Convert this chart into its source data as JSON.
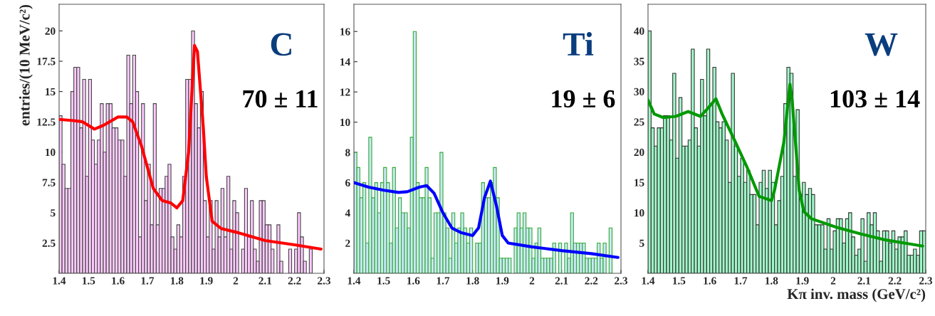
{
  "chart_data": [
    {
      "type": "histogram",
      "ylabel": "entries/(10 MeV/c²)",
      "annotations": [
        "C",
        "70 ± 11"
      ],
      "xlim": [
        1.4,
        2.3
      ],
      "xticks": [
        1.4,
        1.5,
        1.6,
        1.7,
        1.8,
        1.9,
        2,
        2.1,
        2.2,
        2.3
      ],
      "ylim": [
        0,
        22.2
      ],
      "yticks": [
        2.5,
        5,
        7.5,
        10,
        12.5,
        15,
        17.5,
        20
      ],
      "bins": [
        1.4,
        1.41,
        1.42,
        1.43,
        1.44,
        1.45,
        1.46,
        1.47,
        1.48,
        1.49,
        1.5,
        1.51,
        1.52,
        1.53,
        1.54,
        1.55,
        1.56,
        1.57,
        1.58,
        1.59,
        1.6,
        1.61,
        1.62,
        1.63,
        1.64,
        1.65,
        1.66,
        1.67,
        1.68,
        1.69,
        1.7,
        1.71,
        1.72,
        1.73,
        1.74,
        1.75,
        1.76,
        1.77,
        1.78,
        1.79,
        1.8,
        1.81,
        1.82,
        1.83,
        1.84,
        1.85,
        1.86,
        1.87,
        1.88,
        1.89,
        1.9,
        1.91,
        1.92,
        1.93,
        1.94,
        1.95,
        1.96,
        1.97,
        1.98,
        1.99,
        2.0,
        2.01,
        2.02,
        2.03,
        2.04,
        2.05,
        2.06,
        2.07,
        2.08,
        2.09,
        2.1,
        2.11,
        2.12,
        2.13,
        2.14,
        2.15,
        2.16,
        2.17,
        2.18,
        2.19,
        2.2,
        2.21,
        2.22,
        2.23,
        2.24,
        2.25,
        2.26,
        2.27,
        2.28,
        2.29,
        2.3
      ],
      "series": [
        {
          "color": "#ffccff",
          "values": [
            13,
            9,
            7,
            7,
            15,
            17,
            17,
            12,
            16,
            8,
            16,
            11,
            9,
            11,
            14,
            10,
            14,
            14,
            12,
            12,
            11,
            11,
            8,
            18,
            14,
            18,
            15,
            3,
            14,
            6,
            9,
            4,
            14,
            4,
            7,
            7,
            8,
            9,
            3,
            2,
            4,
            3,
            8,
            16,
            16,
            20,
            14,
            12,
            15,
            6,
            3,
            6,
            2,
            6,
            3,
            7,
            3,
            8,
            2,
            6,
            5,
            0,
            2,
            7,
            3,
            6,
            2,
            1,
            6,
            6,
            4,
            4,
            2,
            0,
            4,
            1,
            0,
            0,
            2,
            0,
            2,
            5,
            3,
            1,
            0,
            2,
            0,
            0,
            0,
            0
          ]
        },
        {
          "type": "line",
          "color": "#ff0000",
          "x": [
            1.4,
            1.45,
            1.48,
            1.52,
            1.55,
            1.6,
            1.63,
            1.65,
            1.68,
            1.72,
            1.75,
            1.78,
            1.8,
            1.82,
            1.84,
            1.86,
            1.87,
            1.89,
            1.9,
            1.92,
            1.95,
            2.0,
            2.1,
            2.2,
            2.29
          ],
          "values": [
            12.7,
            12.6,
            12.5,
            11.9,
            12.2,
            12.9,
            12.9,
            12.5,
            10.5,
            7.0,
            6.0,
            5.8,
            5.4,
            6.0,
            10,
            18.8,
            18.3,
            12,
            8,
            4.3,
            3.7,
            3.4,
            2.7,
            2.35,
            2.0
          ]
        }
      ]
    },
    {
      "type": "histogram",
      "annotations": [
        "Ti",
        "19 ± 6"
      ],
      "xlim": [
        1.4,
        2.3
      ],
      "xticks": [
        1.4,
        1.5,
        1.6,
        1.7,
        1.8,
        1.9,
        2,
        2.1,
        2.2,
        2.3
      ],
      "ylim": [
        0,
        17.8
      ],
      "yticks": [
        2,
        4,
        6,
        8,
        10,
        12,
        14,
        16
      ],
      "bins": [
        1.4,
        1.41,
        1.42,
        1.43,
        1.44,
        1.45,
        1.46,
        1.47,
        1.48,
        1.49,
        1.5,
        1.51,
        1.52,
        1.53,
        1.54,
        1.55,
        1.56,
        1.57,
        1.58,
        1.59,
        1.6,
        1.61,
        1.62,
        1.63,
        1.64,
        1.65,
        1.66,
        1.67,
        1.68,
        1.69,
        1.7,
        1.71,
        1.72,
        1.73,
        1.74,
        1.75,
        1.76,
        1.77,
        1.78,
        1.79,
        1.8,
        1.81,
        1.82,
        1.83,
        1.84,
        1.85,
        1.86,
        1.87,
        1.88,
        1.89,
        1.9,
        1.91,
        1.92,
        1.93,
        1.94,
        1.95,
        1.96,
        1.97,
        1.98,
        1.99,
        2.0,
        2.01,
        2.02,
        2.03,
        2.04,
        2.05,
        2.06,
        2.07,
        2.08,
        2.09,
        2.1,
        2.11,
        2.12,
        2.13,
        2.14,
        2.15,
        2.16,
        2.17,
        2.18,
        2.19,
        2.2,
        2.21,
        2.22,
        2.23,
        2.24,
        2.25,
        2.26,
        2.27,
        2.28,
        2.29,
        2.3
      ],
      "series": [
        {
          "color": "#cce8fa",
          "values": [
            8,
            7,
            5,
            6,
            2,
            9,
            5,
            6,
            4,
            6,
            7,
            6,
            2,
            7,
            3,
            5,
            4,
            4,
            3,
            9,
            16,
            6,
            5,
            5,
            7,
            5,
            1,
            4,
            4,
            8,
            4,
            3,
            1,
            4,
            2,
            3,
            4,
            3,
            2,
            3,
            0,
            2,
            2,
            6,
            5,
            5,
            6,
            7,
            5,
            1,
            1,
            1,
            1,
            0,
            3,
            4,
            3,
            4,
            3,
            3,
            1,
            2,
            3,
            1,
            1,
            1,
            1,
            2,
            0,
            2,
            0,
            2,
            1,
            4,
            2,
            2,
            2,
            2,
            1,
            1,
            1,
            1,
            2,
            1,
            2,
            0,
            3,
            0,
            0,
            0
          ]
        },
        {
          "type": "line",
          "color": "#0000ff",
          "x": [
            1.4,
            1.45,
            1.5,
            1.55,
            1.58,
            1.62,
            1.645,
            1.67,
            1.7,
            1.73,
            1.76,
            1.8,
            1.82,
            1.84,
            1.86,
            1.88,
            1.9,
            1.92,
            2.0,
            2.1,
            2.2,
            2.29
          ],
          "values": [
            6.0,
            5.7,
            5.5,
            5.35,
            5.4,
            5.7,
            5.8,
            5.3,
            4.0,
            3.0,
            2.7,
            2.5,
            3.0,
            5.0,
            6.1,
            4.5,
            2.5,
            2.0,
            1.75,
            1.5,
            1.3,
            1.05
          ]
        }
      ]
    },
    {
      "type": "histogram",
      "xlabel": "Kπ inv. mass (GeV/c²)",
      "annotations": [
        "W",
        "103 ± 14"
      ],
      "xlim": [
        1.4,
        2.3
      ],
      "xticks": [
        1.4,
        1.5,
        1.6,
        1.7,
        1.8,
        1.9,
        2,
        2.1,
        2.2,
        2.3
      ],
      "ylim": [
        0,
        44.4
      ],
      "yticks": [
        5,
        10,
        15,
        20,
        25,
        30,
        35,
        40
      ],
      "bins": [
        1.4,
        1.41,
        1.42,
        1.43,
        1.44,
        1.45,
        1.46,
        1.47,
        1.48,
        1.49,
        1.5,
        1.51,
        1.52,
        1.53,
        1.54,
        1.55,
        1.56,
        1.57,
        1.58,
        1.59,
        1.6,
        1.61,
        1.62,
        1.63,
        1.64,
        1.65,
        1.66,
        1.67,
        1.68,
        1.69,
        1.7,
        1.71,
        1.72,
        1.73,
        1.74,
        1.75,
        1.76,
        1.77,
        1.78,
        1.79,
        1.8,
        1.81,
        1.82,
        1.83,
        1.84,
        1.85,
        1.86,
        1.87,
        1.88,
        1.89,
        1.9,
        1.91,
        1.92,
        1.93,
        1.94,
        1.95,
        1.96,
        1.97,
        1.98,
        1.99,
        2.0,
        2.01,
        2.02,
        2.03,
        2.04,
        2.05,
        2.06,
        2.07,
        2.08,
        2.09,
        2.1,
        2.11,
        2.12,
        2.13,
        2.14,
        2.15,
        2.16,
        2.17,
        2.18,
        2.19,
        2.2,
        2.21,
        2.22,
        2.23,
        2.24,
        2.25,
        2.26,
        2.27,
        2.28,
        2.29,
        2.3
      ],
      "series": [
        {
          "color": "#a0f8c8",
          "values": [
            40,
            24,
            21,
            24,
            24,
            26,
            26,
            22,
            33,
            19,
            29,
            21,
            21,
            22,
            37,
            24,
            21,
            32,
            26,
            37,
            28,
            34,
            25,
            24,
            25,
            22,
            15,
            33,
            21,
            16,
            19,
            15,
            17,
            13,
            13,
            8,
            15,
            17,
            14,
            17,
            15,
            8,
            12,
            16,
            28,
            34,
            33,
            16,
            27,
            13,
            15,
            13,
            14,
            13,
            8,
            8,
            8,
            4,
            9,
            4,
            7,
            9,
            9,
            5,
            9,
            10,
            6,
            3,
            4,
            9,
            2,
            10,
            8,
            10,
            7,
            2,
            7,
            7,
            5,
            7,
            4,
            6,
            6,
            7,
            3,
            3,
            4,
            3,
            7,
            7
          ]
        },
        {
          "type": "line",
          "color": "#009900",
          "x": [
            1.4,
            1.42,
            1.45,
            1.49,
            1.53,
            1.57,
            1.59,
            1.62,
            1.64,
            1.68,
            1.72,
            1.76,
            1.8,
            1.81,
            1.84,
            1.86,
            1.867,
            1.89,
            1.905,
            1.93,
            2.01,
            2.09,
            2.17,
            2.29
          ],
          "values": [
            28.6,
            26.3,
            25.7,
            25.9,
            26.7,
            25.9,
            27,
            28.8,
            26.3,
            22,
            17.6,
            12.7,
            12,
            13.7,
            21.6,
            31.2,
            28.6,
            13.7,
            10.2,
            9,
            7.6,
            6.5,
            5.5,
            4.5
          ]
        }
      ]
    }
  ]
}
